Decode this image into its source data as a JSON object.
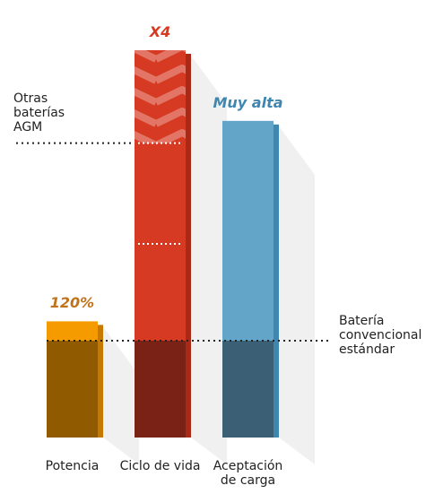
{
  "chart_data": {
    "type": "bar",
    "categories": [
      "Potencia",
      "Ciclo de vida",
      "Aceptación de carga"
    ],
    "values": [
      120,
      400,
      327
    ],
    "value_labels": [
      "120%",
      "X4",
      "Muy alta"
    ],
    "colors": [
      "#f59b00",
      "#d63a22",
      "#62a5c8"
    ],
    "base_colors": [
      "#8f5a00",
      "#7a2216",
      "#3b5f74"
    ],
    "side_colors": [
      "#c77800",
      "#a92a16",
      "#3f86b0"
    ],
    "label_colors": [
      "#c0731a",
      "#d63a22",
      "#3f86b0"
    ],
    "hatched": [
      false,
      true,
      false
    ],
    "ylim": [
      0,
      400
    ],
    "reference_lines": [
      {
        "value": 100,
        "label": "Batería convencional estándar"
      },
      {
        "value": 304,
        "label": "Otras baterías AGM"
      }
    ],
    "inner_marks": [
      200
    ]
  }
}
